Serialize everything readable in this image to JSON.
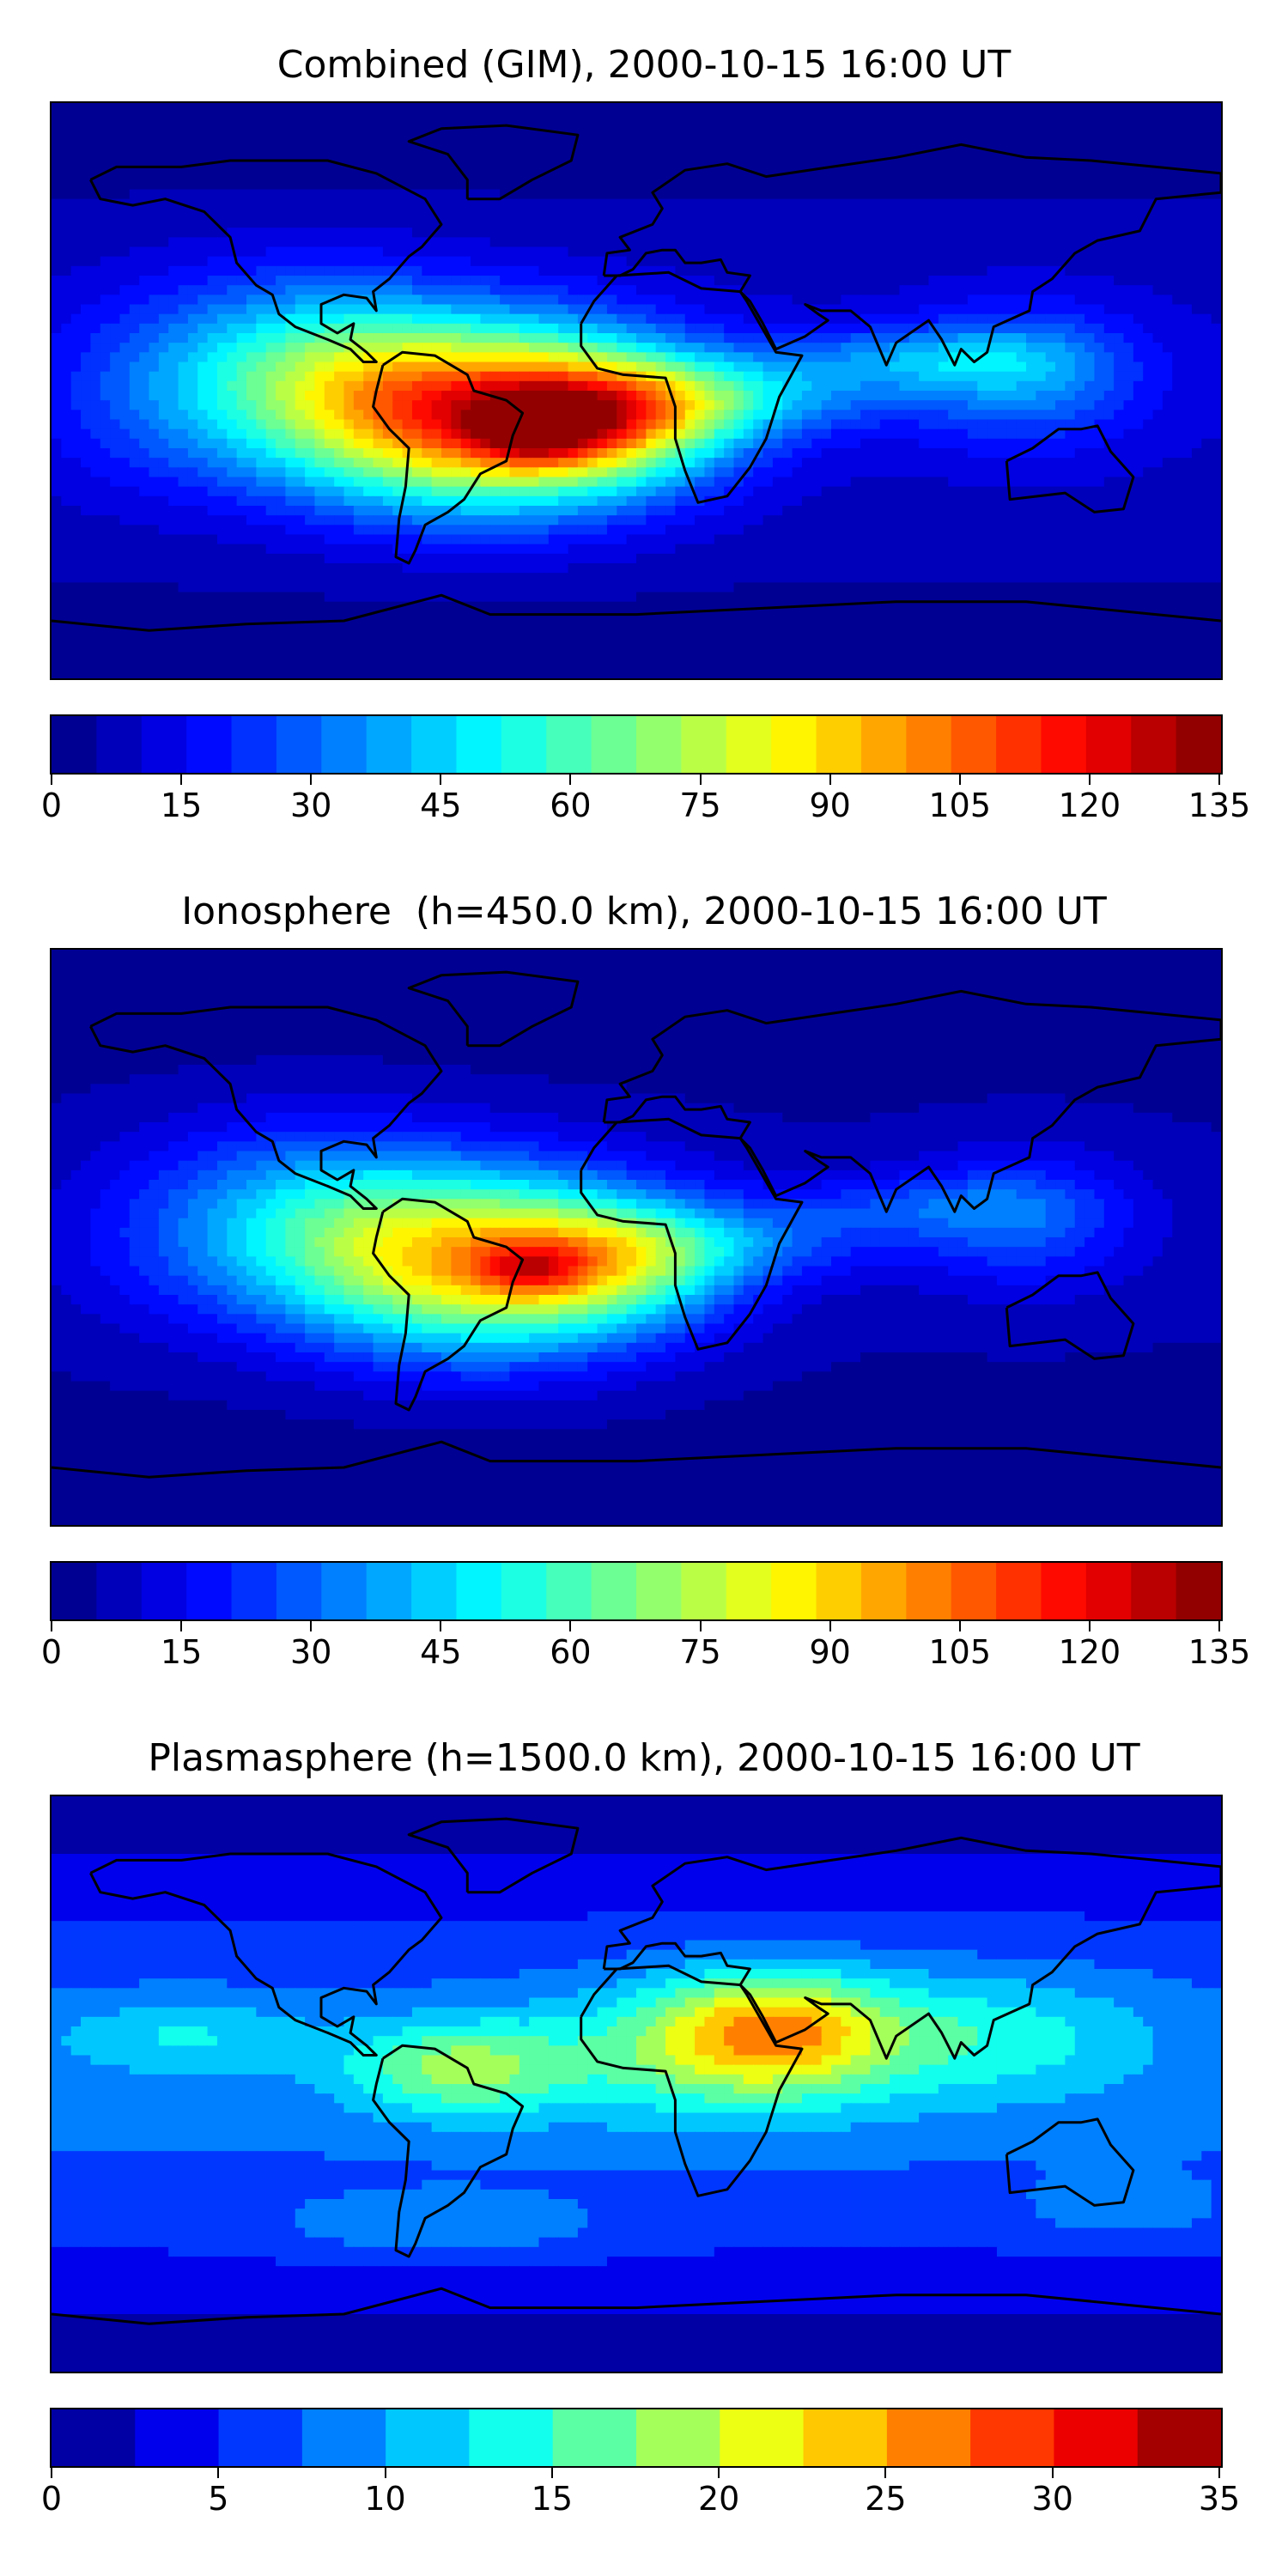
{
  "panels": [
    {
      "title": "Combined (GIM), 2000-10-15 16:00 UT",
      "colorbar": {
        "min": 0,
        "max": 135,
        "levels": 26,
        "ticks": [
          "0",
          "15",
          "30",
          "45",
          "60",
          "75",
          "90",
          "105",
          "120",
          "135"
        ]
      },
      "blobs": [
        {
          "lon": -45,
          "lat": -8,
          "value": 98,
          "rx": 55,
          "ry": 28
        },
        {
          "lon": -30,
          "lat": -12,
          "value": 35,
          "rx": 18,
          "ry": 10
        },
        {
          "lon": -5,
          "lat": -8,
          "value": 45,
          "rx": 35,
          "ry": 18
        },
        {
          "lon": -100,
          "lat": 5,
          "value": 40,
          "rx": 45,
          "ry": 30
        },
        {
          "lon": 30,
          "lat": -2,
          "value": 25,
          "rx": 50,
          "ry": 12
        },
        {
          "lon": 85,
          "lat": 10,
          "value": 22,
          "rx": 45,
          "ry": 10
        },
        {
          "lon": 120,
          "lat": 5,
          "value": 25,
          "rx": 35,
          "ry": 22
        },
        {
          "lon": -150,
          "lat": 0,
          "value": 12,
          "rx": 35,
          "ry": 30
        }
      ],
      "base": 10
    },
    {
      "title": "Ionosphere  (h=450.0 km), 2000-10-15 16:00 UT",
      "colorbar": {
        "min": 0,
        "max": 135,
        "levels": 26,
        "ticks": [
          "0",
          "15",
          "30",
          "45",
          "60",
          "75",
          "90",
          "105",
          "120",
          "135"
        ]
      },
      "blobs": [
        {
          "lon": -45,
          "lat": -8,
          "value": 80,
          "rx": 55,
          "ry": 28
        },
        {
          "lon": -32,
          "lat": -10,
          "value": 25,
          "rx": 16,
          "ry": 8
        },
        {
          "lon": -5,
          "lat": -8,
          "value": 30,
          "rx": 35,
          "ry": 18
        },
        {
          "lon": -100,
          "lat": 5,
          "value": 32,
          "rx": 45,
          "ry": 30
        },
        {
          "lon": 30,
          "lat": -2,
          "value": 18,
          "rx": 50,
          "ry": 12
        },
        {
          "lon": 85,
          "lat": 10,
          "value": 15,
          "rx": 45,
          "ry": 10
        },
        {
          "lon": 120,
          "lat": 5,
          "value": 20,
          "rx": 35,
          "ry": 22
        },
        {
          "lon": -150,
          "lat": 0,
          "value": 8,
          "rx": 35,
          "ry": 30
        }
      ],
      "base": 6
    },
    {
      "title": "Plasmasphere (h=1500.0 km), 2000-10-15 16:00 UT",
      "colorbar": {
        "min": 0,
        "max": 35,
        "levels": 14,
        "ticks": [
          "0",
          "5",
          "10",
          "15",
          "20",
          "25",
          "30",
          "35"
        ]
      },
      "blobs": [
        {
          "lon": 42,
          "lat": 18,
          "value": 12,
          "rx": 35,
          "ry": 18
        },
        {
          "lon": 25,
          "lat": 10,
          "value": 8,
          "rx": 55,
          "ry": 22
        },
        {
          "lon": -55,
          "lat": 5,
          "value": 10,
          "rx": 35,
          "ry": 15
        },
        {
          "lon": 110,
          "lat": 15,
          "value": 6,
          "rx": 50,
          "ry": 20
        },
        {
          "lon": -140,
          "lat": 15,
          "value": 5,
          "rx": 40,
          "ry": 12
        },
        {
          "lon": -60,
          "lat": -45,
          "value": 4,
          "rx": 50,
          "ry": 10
        },
        {
          "lon": 150,
          "lat": -40,
          "value": 3,
          "rx": 30,
          "ry": 10
        }
      ],
      "base": 8
    }
  ]
}
